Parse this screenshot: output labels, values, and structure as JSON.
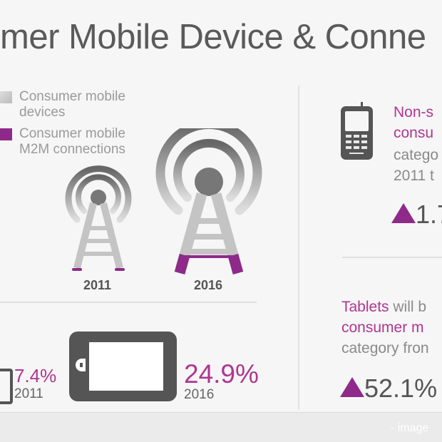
{
  "title": "mer Mobile Device & Conne",
  "legend": [
    {
      "label_line1": "Consumer mobile",
      "label_line2": "devices",
      "color": "#c8c8c8"
    },
    {
      "label_line1": "Consumer mobile",
      "label_line2": "M2M connections",
      "color": "#8e2a8a"
    }
  ],
  "towers": [
    {
      "icon": "signal-tower-icon",
      "year": "2011"
    },
    {
      "icon": "signal-tower-icon",
      "year": "2016"
    }
  ],
  "tablet_share": [
    {
      "value": "7.4%",
      "year": "2011"
    },
    {
      "value": "24.9%",
      "year": "2016"
    }
  ],
  "non_smartphone": {
    "icon": "feature-phone-icon",
    "line1": "Non-s",
    "line2": "consu",
    "line3": "catego",
    "line4": "2011 t",
    "growth": "1.7"
  },
  "tablets": {
    "highlight": "Tablets",
    "line1_rest": " will b",
    "line2": "consumer m",
    "line3": "category fron",
    "growth": "52.1%"
  },
  "watermark": "- image",
  "colors": {
    "accent": "#b03592",
    "triangle": "#8e2a8a",
    "icon": "#555555"
  }
}
